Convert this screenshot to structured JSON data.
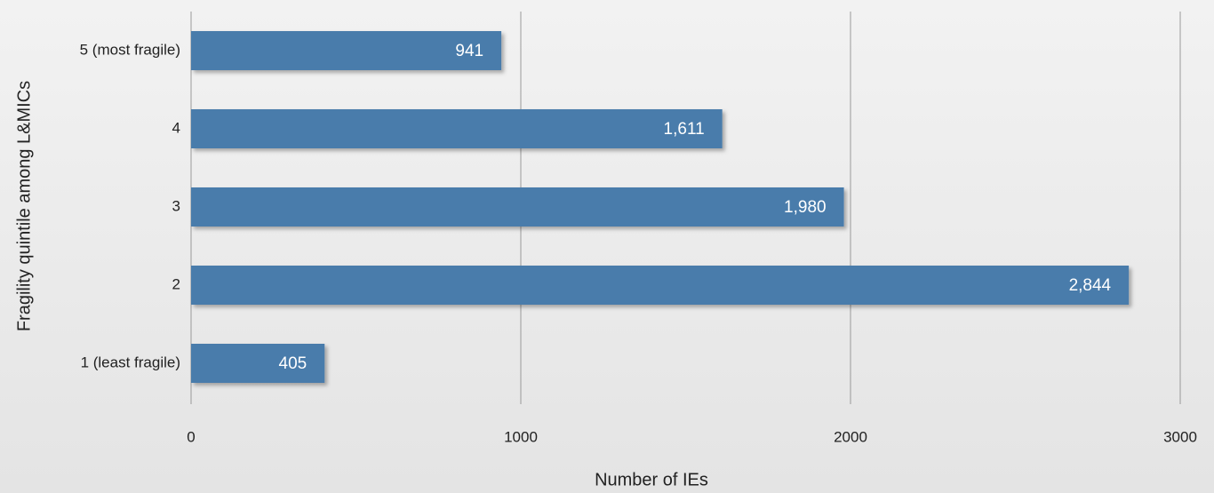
{
  "chart_data": {
    "type": "bar",
    "orientation": "horizontal",
    "categories": [
      "5 (most fragile)",
      "4",
      "3",
      "2",
      "1 (least fragile)"
    ],
    "values": [
      941,
      1611,
      1980,
      2844,
      405
    ],
    "value_labels": [
      "941",
      "1,611",
      "1,980",
      "2,844",
      "405"
    ],
    "color": "#4a7bab",
    "xlim": [
      0,
      3000
    ],
    "xticks": [
      0,
      1000,
      2000,
      3000
    ],
    "grid": true,
    "xlabel": "Number of IEs",
    "ylabel": "Fragility quintile among L&MICs"
  }
}
